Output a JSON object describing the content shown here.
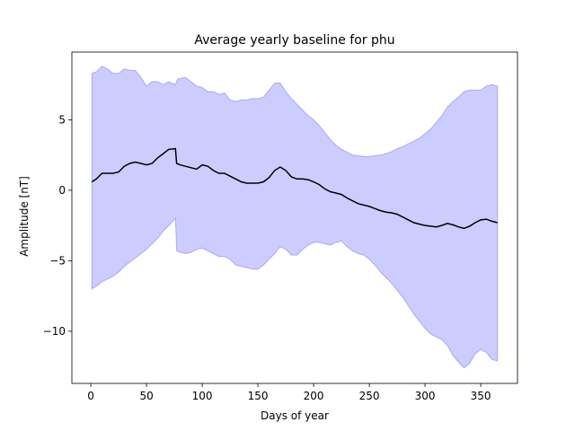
{
  "chart_data": {
    "type": "area",
    "title": "Average yearly baseline for phu",
    "xlabel": "Days of year",
    "ylabel": "Amplitude [nT]",
    "xlim": [
      -17,
      383
    ],
    "ylim": [
      -13.7,
      9.8
    ],
    "xticks": [
      0,
      50,
      100,
      150,
      200,
      250,
      300,
      350
    ],
    "yticks": [
      -10,
      -5,
      0,
      5
    ],
    "ytick_labels": [
      "−10",
      "−5",
      "0",
      "5"
    ],
    "grid": false,
    "colors": {
      "mean": "#000000",
      "band_fill": "#0000ff",
      "band_fill_alpha": 0.2
    },
    "series": [
      {
        "values": [
          [
            1,
            0.6
          ],
          [
            5,
            0.8
          ],
          [
            10,
            1.2
          ],
          [
            15,
            1.2
          ],
          [
            20,
            1.2
          ],
          [
            25,
            1.3
          ],
          [
            30,
            1.7
          ],
          [
            35,
            1.9
          ],
          [
            40,
            2.0
          ],
          [
            45,
            1.9
          ],
          [
            50,
            1.8
          ],
          [
            55,
            1.9
          ],
          [
            60,
            2.3
          ],
          [
            65,
            2.6
          ],
          [
            70,
            2.9
          ],
          [
            76,
            2.95
          ],
          [
            77,
            1.9
          ],
          [
            80,
            1.8
          ],
          [
            85,
            1.7
          ],
          [
            90,
            1.6
          ],
          [
            95,
            1.5
          ],
          [
            100,
            1.8
          ],
          [
            105,
            1.7
          ],
          [
            110,
            1.4
          ],
          [
            115,
            1.2
          ],
          [
            120,
            1.2
          ],
          [
            125,
            1.0
          ],
          [
            130,
            0.8
          ],
          [
            135,
            0.6
          ],
          [
            140,
            0.5
          ],
          [
            145,
            0.5
          ],
          [
            150,
            0.5
          ],
          [
            155,
            0.6
          ],
          [
            160,
            0.9
          ],
          [
            165,
            1.4
          ],
          [
            170,
            1.65
          ],
          [
            175,
            1.4
          ],
          [
            180,
            0.95
          ],
          [
            185,
            0.8
          ],
          [
            190,
            0.8
          ],
          [
            195,
            0.75
          ],
          [
            200,
            0.6
          ],
          [
            205,
            0.4
          ],
          [
            210,
            0.1
          ],
          [
            215,
            -0.1
          ],
          [
            220,
            -0.2
          ],
          [
            225,
            -0.3
          ],
          [
            230,
            -0.55
          ],
          [
            235,
            -0.75
          ],
          [
            240,
            -0.95
          ],
          [
            245,
            -1.05
          ],
          [
            250,
            -1.15
          ],
          [
            255,
            -1.3
          ],
          [
            260,
            -1.45
          ],
          [
            265,
            -1.55
          ],
          [
            270,
            -1.6
          ],
          [
            275,
            -1.7
          ],
          [
            280,
            -1.9
          ],
          [
            285,
            -2.1
          ],
          [
            290,
            -2.3
          ],
          [
            295,
            -2.4
          ],
          [
            300,
            -2.5
          ],
          [
            305,
            -2.55
          ],
          [
            310,
            -2.6
          ],
          [
            315,
            -2.5
          ],
          [
            320,
            -2.35
          ],
          [
            325,
            -2.45
          ],
          [
            330,
            -2.6
          ],
          [
            335,
            -2.7
          ],
          [
            340,
            -2.55
          ],
          [
            345,
            -2.3
          ],
          [
            350,
            -2.1
          ],
          [
            355,
            -2.05
          ],
          [
            360,
            -2.2
          ],
          [
            365,
            -2.3
          ]
        ]
      }
    ],
    "band": {
      "upper": [
        [
          1,
          8.3
        ],
        [
          5,
          8.4
        ],
        [
          10,
          8.8
        ],
        [
          15,
          8.6
        ],
        [
          20,
          8.3
        ],
        [
          25,
          8.3
        ],
        [
          30,
          8.6
        ],
        [
          35,
          8.5
        ],
        [
          40,
          8.5
        ],
        [
          45,
          8.0
        ],
        [
          50,
          7.4
        ],
        [
          55,
          7.7
        ],
        [
          60,
          7.7
        ],
        [
          65,
          7.5
        ],
        [
          70,
          7.7
        ],
        [
          76,
          7.5
        ],
        [
          78,
          7.9
        ],
        [
          85,
          8.0
        ],
        [
          90,
          7.7
        ],
        [
          95,
          7.4
        ],
        [
          100,
          7.3
        ],
        [
          105,
          7.0
        ],
        [
          110,
          7.0
        ],
        [
          115,
          6.8
        ],
        [
          120,
          6.9
        ],
        [
          125,
          6.4
        ],
        [
          130,
          6.3
        ],
        [
          135,
          6.4
        ],
        [
          140,
          6.4
        ],
        [
          145,
          6.5
        ],
        [
          150,
          6.5
        ],
        [
          155,
          6.6
        ],
        [
          160,
          7.1
        ],
        [
          165,
          7.6
        ],
        [
          170,
          7.6
        ],
        [
          175,
          7.0
        ],
        [
          180,
          6.5
        ],
        [
          185,
          6.1
        ],
        [
          190,
          5.7
        ],
        [
          195,
          5.3
        ],
        [
          200,
          5.0
        ],
        [
          205,
          4.6
        ],
        [
          210,
          4.1
        ],
        [
          215,
          3.6
        ],
        [
          220,
          3.2
        ],
        [
          225,
          2.9
        ],
        [
          230,
          2.7
        ],
        [
          235,
          2.5
        ],
        [
          240,
          2.45
        ],
        [
          245,
          2.4
        ],
        [
          250,
          2.4
        ],
        [
          255,
          2.45
        ],
        [
          260,
          2.5
        ],
        [
          265,
          2.6
        ],
        [
          270,
          2.75
        ],
        [
          275,
          2.95
        ],
        [
          280,
          3.1
        ],
        [
          285,
          3.3
        ],
        [
          290,
          3.5
        ],
        [
          295,
          3.7
        ],
        [
          300,
          4.0
        ],
        [
          305,
          4.35
        ],
        [
          310,
          4.8
        ],
        [
          315,
          5.3
        ],
        [
          320,
          5.9
        ],
        [
          325,
          6.3
        ],
        [
          330,
          6.6
        ],
        [
          335,
          7.0
        ],
        [
          340,
          7.1
        ],
        [
          345,
          7.1
        ],
        [
          350,
          7.1
        ],
        [
          355,
          7.4
        ],
        [
          360,
          7.5
        ],
        [
          365,
          7.4
        ]
      ],
      "lower": [
        [
          1,
          -7.0
        ],
        [
          5,
          -6.8
        ],
        [
          10,
          -6.5
        ],
        [
          15,
          -6.3
        ],
        [
          20,
          -6.1
        ],
        [
          25,
          -5.8
        ],
        [
          30,
          -5.4
        ],
        [
          35,
          -5.1
        ],
        [
          40,
          -4.8
        ],
        [
          45,
          -4.5
        ],
        [
          50,
          -4.2
        ],
        [
          55,
          -3.8
        ],
        [
          60,
          -3.4
        ],
        [
          65,
          -2.9
        ],
        [
          70,
          -2.5
        ],
        [
          76,
          -2.0
        ],
        [
          77,
          -4.3
        ],
        [
          80,
          -4.4
        ],
        [
          85,
          -4.5
        ],
        [
          90,
          -4.4
        ],
        [
          95,
          -4.2
        ],
        [
          100,
          -4.1
        ],
        [
          105,
          -4.3
        ],
        [
          110,
          -4.5
        ],
        [
          115,
          -4.7
        ],
        [
          120,
          -4.7
        ],
        [
          125,
          -4.9
        ],
        [
          130,
          -5.3
        ],
        [
          135,
          -5.4
        ],
        [
          140,
          -5.5
        ],
        [
          145,
          -5.6
        ],
        [
          150,
          -5.6
        ],
        [
          155,
          -5.3
        ],
        [
          160,
          -4.9
        ],
        [
          165,
          -4.5
        ],
        [
          170,
          -4.0
        ],
        [
          175,
          -4.2
        ],
        [
          180,
          -4.6
        ],
        [
          185,
          -4.6
        ],
        [
          190,
          -4.2
        ],
        [
          195,
          -3.9
        ],
        [
          200,
          -3.7
        ],
        [
          205,
          -3.7
        ],
        [
          210,
          -3.8
        ],
        [
          215,
          -3.9
        ],
        [
          220,
          -3.7
        ],
        [
          225,
          -3.6
        ],
        [
          230,
          -4.0
        ],
        [
          235,
          -4.3
        ],
        [
          240,
          -4.5
        ],
        [
          245,
          -4.6
        ],
        [
          250,
          -4.9
        ],
        [
          255,
          -5.3
        ],
        [
          260,
          -5.8
        ],
        [
          265,
          -6.2
        ],
        [
          270,
          -6.6
        ],
        [
          275,
          -7.1
        ],
        [
          280,
          -7.6
        ],
        [
          285,
          -8.2
        ],
        [
          290,
          -8.8
        ],
        [
          295,
          -9.3
        ],
        [
          300,
          -9.8
        ],
        [
          305,
          -10.2
        ],
        [
          310,
          -10.4
        ],
        [
          315,
          -10.6
        ],
        [
          320,
          -11.0
        ],
        [
          325,
          -11.7
        ],
        [
          330,
          -12.2
        ],
        [
          335,
          -12.6
        ],
        [
          340,
          -12.3
        ],
        [
          345,
          -11.6
        ],
        [
          350,
          -11.3
        ],
        [
          355,
          -11.5
        ],
        [
          360,
          -12.0
        ],
        [
          365,
          -12.1
        ]
      ]
    }
  }
}
